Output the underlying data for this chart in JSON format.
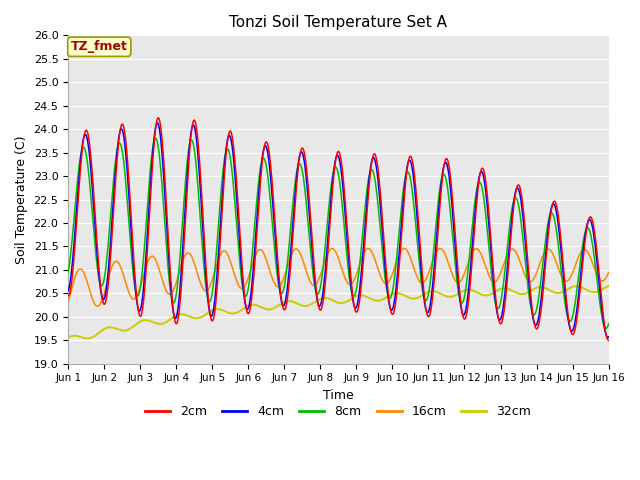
{
  "title": "Tonzi Soil Temperature Set A",
  "xlabel": "Time",
  "ylabel": "Soil Temperature (C)",
  "ylim": [
    19.0,
    26.0
  ],
  "yticks": [
    19.0,
    19.5,
    20.0,
    20.5,
    21.0,
    21.5,
    22.0,
    22.5,
    23.0,
    23.5,
    24.0,
    24.5,
    25.0,
    25.5,
    26.0
  ],
  "xtick_labels": [
    "Jun 1",
    "Jun 2",
    "Jun 3",
    "Jun 4",
    "Jun 5",
    "Jun 6",
    "Jun 7",
    "Jun 8",
    "Jun 9",
    "Jun 10",
    "Jun 11",
    "Jun 12",
    "Jun 13",
    "Jun 14",
    "Jun 15",
    "Jun 16"
  ],
  "colors": {
    "2cm": "#ff0000",
    "4cm": "#0000ff",
    "8cm": "#00bb00",
    "16cm": "#ff8800",
    "32cm": "#cccc00"
  },
  "background_color": "#e8e8e8",
  "annotation_text": "TZ_fmet",
  "annotation_bg": "#ffffcc",
  "annotation_fg": "#aa0000",
  "n_points": 720,
  "time_days": 15.0
}
